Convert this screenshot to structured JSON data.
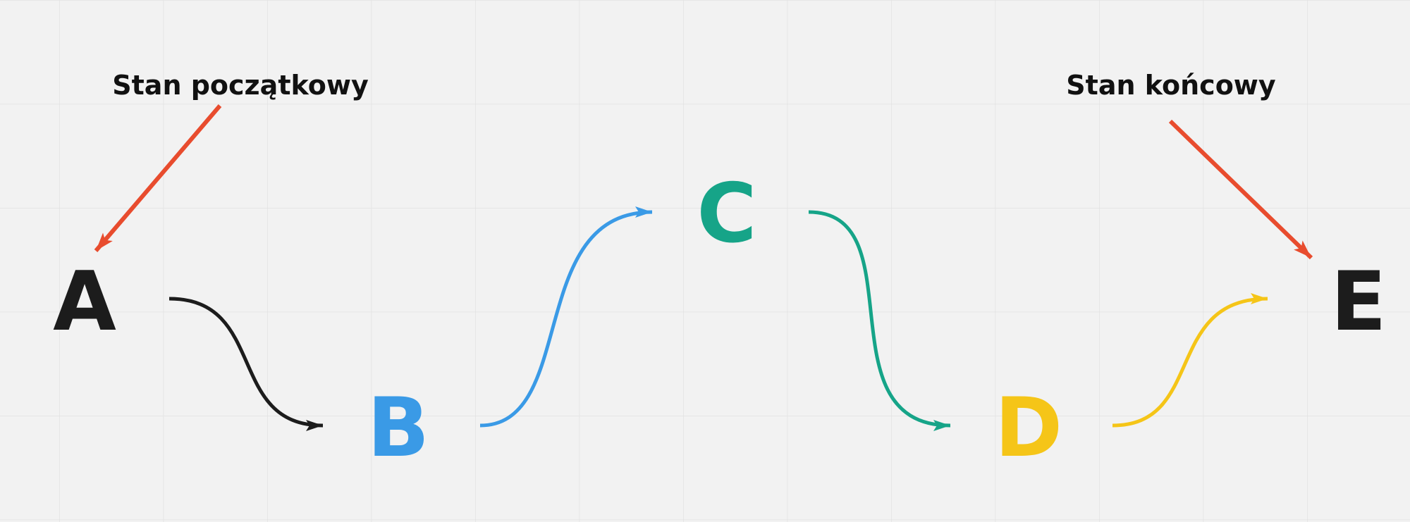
{
  "colors": {
    "background": "#f2f2f2",
    "grid": "#e2e2e2",
    "black": "#1c1c1c",
    "blue": "#3a9ae6",
    "green": "#16a488",
    "yellow": "#f5c518",
    "red": "#e84c2e"
  },
  "labels": {
    "start_state": "Stan początkowy",
    "end_state": "Stan końcowy"
  },
  "nodes": {
    "a": "A",
    "b": "B",
    "c": "C",
    "d": "D",
    "e": "E"
  }
}
